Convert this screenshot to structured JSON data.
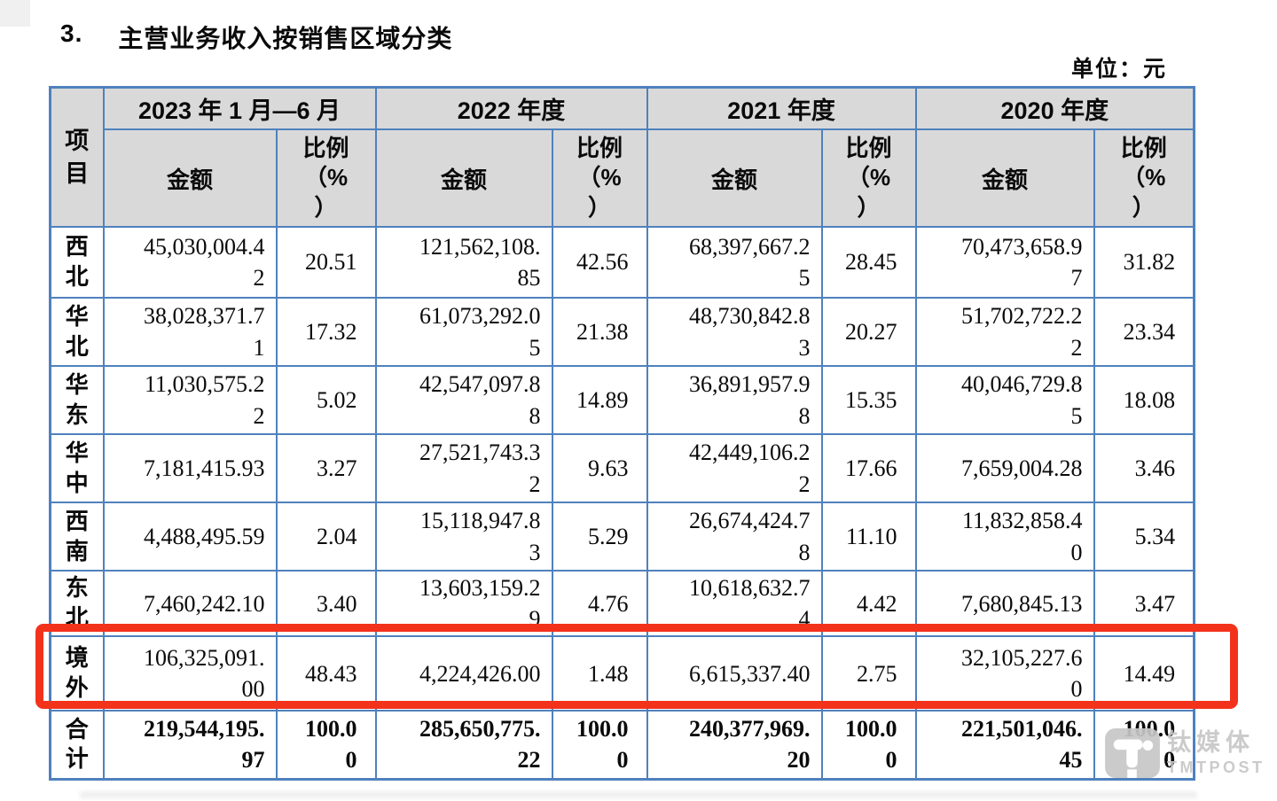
{
  "page": {
    "section_number": "3.",
    "title": "主营业务收入按销售区域分类",
    "unit_label": "单位：元"
  },
  "table": {
    "item_header": "项\n目",
    "amount_header": "金额",
    "ratio_header": "比例\n（%\n）",
    "periods": [
      "2023 年 1 月—6 月",
      "2022 年度",
      "2021 年度",
      "2020 年度"
    ],
    "rows": [
      {
        "region": "西\n北",
        "cells": [
          "45,030,004.4\n2",
          "20.51",
          "121,562,108.\n85",
          "42.56",
          "68,397,667.2\n5",
          "28.45",
          "70,473,658.9\n7",
          "31.82"
        ]
      },
      {
        "region": "华\n北",
        "cells": [
          "38,028,371.7\n1",
          "17.32",
          "61,073,292.0\n5",
          "21.38",
          "48,730,842.8\n3",
          "20.27",
          "51,702,722.2\n2",
          "23.34"
        ]
      },
      {
        "region": "华\n东",
        "cells": [
          "11,030,575.2\n2",
          "5.02",
          "42,547,097.8\n8",
          "14.89",
          "36,891,957.9\n8",
          "15.35",
          "40,046,729.8\n5",
          "18.08"
        ]
      },
      {
        "region": "华\n中",
        "cells": [
          "7,181,415.93",
          "3.27",
          "27,521,743.3\n2",
          "9.63",
          "42,449,106.2\n2",
          "17.66",
          "7,659,004.28",
          "3.46"
        ]
      },
      {
        "region": "西\n南",
        "cells": [
          "4,488,495.59",
          "2.04",
          "15,118,947.8\n3",
          "5.29",
          "26,674,424.7\n8",
          "11.10",
          "11,832,858.4\n0",
          "5.34"
        ]
      },
      {
        "region": "东\n北",
        "cells": [
          "7,460,242.10",
          "3.40",
          "13,603,159.2\n9",
          "4.76",
          "10,618,632.7\n4",
          "4.42",
          "7,680,845.13",
          "3.47"
        ]
      },
      {
        "region": "境\n外",
        "highlighted": true,
        "cells": [
          "106,325,091.\n00",
          "48.43",
          "4,224,426.00",
          "1.48",
          "6,615,337.40",
          "2.75",
          "32,105,227.6\n0",
          "14.49"
        ]
      },
      {
        "region": "合\n计",
        "total": true,
        "cells": [
          "219,544,195.\n97",
          "100.0\n0",
          "285,650,775.\n22",
          "100.0\n0",
          "240,377,969.\n20",
          "100.0\n0",
          "221,501,046.\n45",
          "100.0\n0"
        ]
      }
    ]
  },
  "watermark": {
    "brand": "钛媒体",
    "brand_sub": "TMTPOST"
  },
  "colors": {
    "table_border": "#4f81bd",
    "header_bg": "#d9d9d9",
    "highlight_box": "#f3321c",
    "watermark_gray": "#c7c7c7"
  }
}
